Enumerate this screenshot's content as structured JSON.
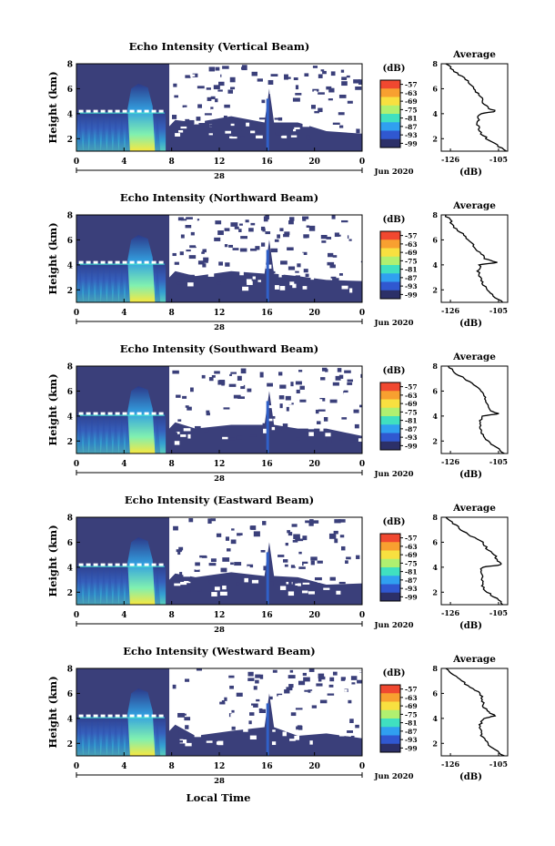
{
  "page": {
    "xlabel": "Local Time",
    "date_label": "Jun 2020",
    "date_tick": "28"
  },
  "colorbar": {
    "unit": "(dB)",
    "ticks": [
      "-57",
      "-63",
      "-69",
      "-75",
      "-81",
      "-87",
      "-93",
      "-99"
    ],
    "colors": [
      "#f04830",
      "#f8a030",
      "#f8e040",
      "#b0f070",
      "#40e0c0",
      "#30a0f0",
      "#3058d0",
      "#2c3068"
    ]
  },
  "colors": {
    "background_echo": "#3a3f7a",
    "strong_echo": "#f8e840",
    "no_data": "#ffffff"
  },
  "chart_data": [
    {
      "type": "heatmap",
      "title": "Echo Intensity (Vertical Beam)",
      "ylabel": "Height (km)",
      "xlim": [
        0,
        24
      ],
      "ylim": [
        1,
        8
      ],
      "x_ticks": [
        "0",
        "4",
        "8",
        "12",
        "16",
        "20",
        "0"
      ],
      "y_ticks": [
        "2",
        "4",
        "6",
        "8"
      ],
      "bright_band_km": 4.2,
      "profile": {
        "title": "Average",
        "xlabel": "(dB)",
        "x_ticks": [
          "-126",
          "-105"
        ],
        "y_ticks": [
          "2",
          "4",
          "6",
          "8"
        ],
        "xlim": [
          -130,
          -101
        ],
        "ylim": [
          1,
          8
        ],
        "height_km": [
          1.0,
          1.5,
          2.0,
          2.5,
          3.0,
          3.5,
          4.0,
          4.2,
          4.5,
          5.0,
          5.5,
          6.0,
          6.5,
          7.0,
          7.5,
          8.0
        ],
        "value_db": [
          -102,
          -106,
          -110,
          -113,
          -114,
          -114,
          -113,
          -106,
          -110,
          -112,
          -113,
          -116,
          -118,
          -121,
          -125,
          -128
        ]
      }
    },
    {
      "type": "heatmap",
      "title": "Echo Intensity (Northward Beam)",
      "ylabel": "Height (km)",
      "xlim": [
        0,
        24
      ],
      "ylim": [
        1,
        8
      ],
      "x_ticks": [
        "0",
        "4",
        "8",
        "12",
        "16",
        "20",
        "0"
      ],
      "y_ticks": [
        "2",
        "4",
        "6",
        "8"
      ],
      "bright_band_km": 4.2,
      "profile": {
        "title": "Average",
        "xlabel": "(dB)",
        "x_ticks": [
          "-126",
          "-105"
        ],
        "y_ticks": [
          "2",
          "4",
          "6",
          "8"
        ],
        "xlim": [
          -130,
          -101
        ],
        "ylim": [
          1,
          8
        ],
        "height_km": [
          1.0,
          1.5,
          2.0,
          2.5,
          3.0,
          3.5,
          4.0,
          4.2,
          4.5,
          5.0,
          5.5,
          6.0,
          6.5,
          7.0,
          7.5,
          8.0
        ],
        "value_db": [
          -103,
          -107,
          -110,
          -112,
          -113,
          -114,
          -113,
          -106,
          -111,
          -113,
          -116,
          -118,
          -121,
          -124,
          -126,
          -128
        ]
      }
    },
    {
      "type": "heatmap",
      "title": "Echo Intensity (Southward Beam)",
      "ylabel": "Height (km)",
      "xlim": [
        0,
        24
      ],
      "ylim": [
        1,
        8
      ],
      "x_ticks": [
        "0",
        "4",
        "8",
        "12",
        "16",
        "20",
        "0"
      ],
      "y_ticks": [
        "2",
        "4",
        "6",
        "8"
      ],
      "bright_band_km": 4.2,
      "profile": {
        "title": "Average",
        "xlabel": "(dB)",
        "x_ticks": [
          "-126",
          "-105"
        ],
        "y_ticks": [
          "2",
          "4",
          "6",
          "8"
        ],
        "xlim": [
          -130,
          -101
        ],
        "ylim": [
          1,
          8
        ],
        "height_km": [
          1.0,
          1.5,
          2.0,
          2.5,
          3.0,
          3.5,
          4.0,
          4.2,
          4.5,
          5.0,
          5.5,
          6.0,
          6.5,
          7.0,
          7.5,
          8.0
        ],
        "value_db": [
          -103,
          -106,
          -110,
          -112,
          -113,
          -113,
          -112,
          -105,
          -109,
          -110,
          -111,
          -112,
          -116,
          -120,
          -124,
          -127
        ]
      }
    },
    {
      "type": "heatmap",
      "title": "Echo Intensity (Eastward Beam)",
      "ylabel": "Height (km)",
      "xlim": [
        0,
        24
      ],
      "ylim": [
        1,
        8
      ],
      "x_ticks": [
        "0",
        "4",
        "8",
        "12",
        "16",
        "20",
        "0"
      ],
      "y_ticks": [
        "2",
        "4",
        "6",
        "8"
      ],
      "bright_band_km": 4.2,
      "profile": {
        "title": "Average",
        "xlabel": "(dB)",
        "x_ticks": [
          "-126",
          "-105"
        ],
        "y_ticks": [
          "2",
          "4",
          "6",
          "8"
        ],
        "xlim": [
          -130,
          -101
        ],
        "ylim": [
          1,
          8
        ],
        "height_km": [
          1.0,
          1.5,
          2.0,
          2.5,
          3.0,
          3.5,
          4.0,
          4.2,
          4.5,
          5.0,
          5.5,
          6.0,
          6.5,
          7.0,
          7.5,
          8.0
        ],
        "value_db": [
          -103,
          -106,
          -110,
          -112,
          -112,
          -113,
          -112,
          -104,
          -105,
          -107,
          -110,
          -112,
          -117,
          -121,
          -125,
          -128
        ]
      }
    },
    {
      "type": "heatmap",
      "title": "Echo Intensity (Westward Beam)",
      "ylabel": "Height (km)",
      "xlim": [
        0,
        24
      ],
      "ylim": [
        1,
        8
      ],
      "x_ticks": [
        "0",
        "4",
        "8",
        "12",
        "16",
        "20",
        "0"
      ],
      "y_ticks": [
        "2",
        "4",
        "6",
        "8"
      ],
      "bright_band_km": 4.2,
      "profile": {
        "title": "Average",
        "xlabel": "(dB)",
        "x_ticks": [
          "-126",
          "-105"
        ],
        "y_ticks": [
          "2",
          "4",
          "6",
          "8"
        ],
        "xlim": [
          -130,
          -101
        ],
        "ylim": [
          1,
          8
        ],
        "height_km": [
          1.0,
          1.5,
          2.0,
          2.5,
          3.0,
          3.5,
          4.0,
          4.2,
          4.5,
          5.0,
          5.5,
          6.0,
          6.5,
          7.0,
          7.5,
          8.0
        ],
        "value_db": [
          -103,
          -106,
          -110,
          -112,
          -113,
          -113,
          -112,
          -106,
          -109,
          -112,
          -112,
          -113,
          -118,
          -121,
          -125,
          -128
        ]
      }
    }
  ]
}
